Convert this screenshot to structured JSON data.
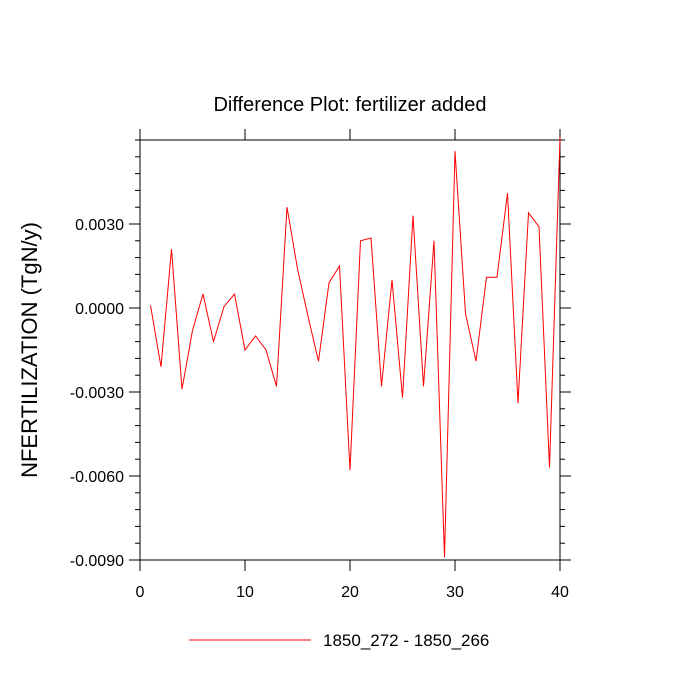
{
  "chart_data": {
    "type": "line",
    "title": "Difference Plot: fertilizer added",
    "xlabel": "",
    "ylabel": "NFERTILIZATION  (TgN/y)",
    "xlim": [
      0,
      40
    ],
    "ylim": [
      -0.009,
      0.006
    ],
    "xticks": [
      0,
      10,
      20,
      30,
      40
    ],
    "xtick_labels": [
      "0",
      "10",
      "20",
      "30",
      "40"
    ],
    "yticks": [
      -0.009,
      -0.006,
      -0.003,
      0.0,
      0.003
    ],
    "ytick_labels": [
      "-0.0090",
      "-0.0060",
      "-0.0030",
      "0.0000",
      "0.0030"
    ],
    "grid": false,
    "legend_position": "bottom-center",
    "series": [
      {
        "name": "1850_272 - 1850_266",
        "color": "#ff0000",
        "x": [
          1,
          2,
          3,
          4,
          5,
          6,
          7,
          8,
          9,
          10,
          11,
          12,
          13,
          14,
          15,
          16,
          17,
          18,
          19,
          20,
          21,
          22,
          23,
          24,
          25,
          26,
          27,
          28,
          29,
          30,
          31,
          32,
          33,
          34,
          35,
          36,
          37,
          38,
          39,
          40
        ],
        "y": [
          0.0001,
          -0.0021,
          0.0021,
          -0.0029,
          -0.0008,
          0.0005,
          -0.0012,
          5e-05,
          0.0005,
          -0.0015,
          -0.001,
          -0.0015,
          -0.0028,
          0.0036,
          0.0014,
          -0.0003,
          -0.0019,
          0.0009,
          0.0015,
          -0.0058,
          0.0024,
          0.0025,
          -0.0028,
          0.001,
          -0.0032,
          0.0033,
          -0.0028,
          0.0024,
          -0.0089,
          0.0056,
          -0.0002,
          -0.0019,
          0.0011,
          0.0011,
          0.0041,
          -0.0034,
          0.0034,
          0.0029,
          -0.0057,
          0.0061
        ]
      }
    ]
  }
}
